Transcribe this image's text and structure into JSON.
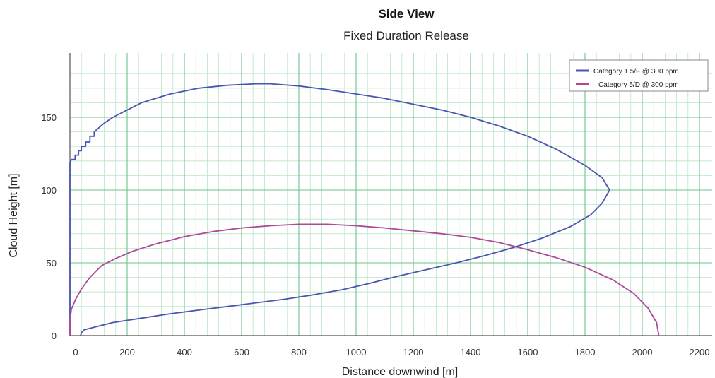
{
  "chart_data": {
    "type": "line",
    "title": "Side View",
    "subtitle": "Fixed Duration Release",
    "xlabel": "Distance downwind [m]",
    "ylabel": "Cloud Height [m]",
    "xlim": [
      0,
      2200
    ],
    "ylim": [
      0,
      190
    ],
    "x_ticks": [
      0,
      200,
      400,
      600,
      800,
      1000,
      1200,
      1400,
      1600,
      1800,
      2000,
      2200
    ],
    "y_ticks": [
      0,
      50,
      100,
      150
    ],
    "grid": "major and minor",
    "legend_position": "top-right",
    "series": [
      {
        "name": "Category 1.5/F @ 300 ppm",
        "color": "#4a55b0",
        "points": [
          [
            37,
            0
          ],
          [
            40,
            2
          ],
          [
            50,
            4
          ],
          [
            90,
            6
          ],
          [
            150,
            9
          ],
          [
            250,
            12
          ],
          [
            350,
            15
          ],
          [
            450,
            17.5
          ],
          [
            550,
            20
          ],
          [
            650,
            22.5
          ],
          [
            750,
            25
          ],
          [
            850,
            28
          ],
          [
            950,
            31.5
          ],
          [
            1050,
            36
          ],
          [
            1150,
            41
          ],
          [
            1250,
            45.5
          ],
          [
            1350,
            50
          ],
          [
            1450,
            55
          ],
          [
            1550,
            60.5
          ],
          [
            1650,
            67
          ],
          [
            1750,
            75
          ],
          [
            1820,
            83
          ],
          [
            1860,
            91
          ],
          [
            1886,
            100
          ],
          [
            1860,
            108.5
          ],
          [
            1800,
            117
          ],
          [
            1700,
            128
          ],
          [
            1600,
            137
          ],
          [
            1500,
            144
          ],
          [
            1400,
            150
          ],
          [
            1300,
            155
          ],
          [
            1200,
            159
          ],
          [
            1100,
            163
          ],
          [
            1000,
            166
          ],
          [
            900,
            169
          ],
          [
            800,
            171.5
          ],
          [
            700,
            173
          ],
          [
            650,
            173
          ],
          [
            550,
            172
          ],
          [
            450,
            170
          ],
          [
            350,
            166
          ],
          [
            250,
            160
          ],
          [
            200,
            155
          ],
          [
            150,
            150
          ],
          [
            120,
            146
          ],
          [
            85,
            140
          ],
          [
            85,
            137
          ],
          [
            70,
            137
          ],
          [
            70,
            133
          ],
          [
            55,
            133
          ],
          [
            55,
            130
          ],
          [
            40,
            130
          ],
          [
            40,
            127
          ],
          [
            30,
            127
          ],
          [
            30,
            124
          ],
          [
            18,
            124
          ],
          [
            18,
            121
          ],
          [
            5,
            121
          ],
          [
            0,
            119
          ],
          [
            0,
            0
          ]
        ]
      },
      {
        "name": "Category 5/D @ 300 ppm",
        "color": "#b0489a",
        "points": [
          [
            0,
            0
          ],
          [
            0,
            10
          ],
          [
            5,
            18
          ],
          [
            20,
            25
          ],
          [
            40,
            32
          ],
          [
            70,
            40
          ],
          [
            110,
            48
          ],
          [
            160,
            53
          ],
          [
            220,
            58
          ],
          [
            300,
            63
          ],
          [
            400,
            68
          ],
          [
            500,
            71.5
          ],
          [
            600,
            74
          ],
          [
            700,
            75.5
          ],
          [
            800,
            76.5
          ],
          [
            900,
            76.5
          ],
          [
            1000,
            75.5
          ],
          [
            1100,
            74
          ],
          [
            1200,
            72
          ],
          [
            1300,
            70
          ],
          [
            1400,
            67.5
          ],
          [
            1500,
            64
          ],
          [
            1600,
            59
          ],
          [
            1700,
            53.5
          ],
          [
            1800,
            47
          ],
          [
            1900,
            38
          ],
          [
            1970,
            29
          ],
          [
            2020,
            19
          ],
          [
            2050,
            9
          ],
          [
            2058,
            0
          ]
        ]
      }
    ]
  }
}
